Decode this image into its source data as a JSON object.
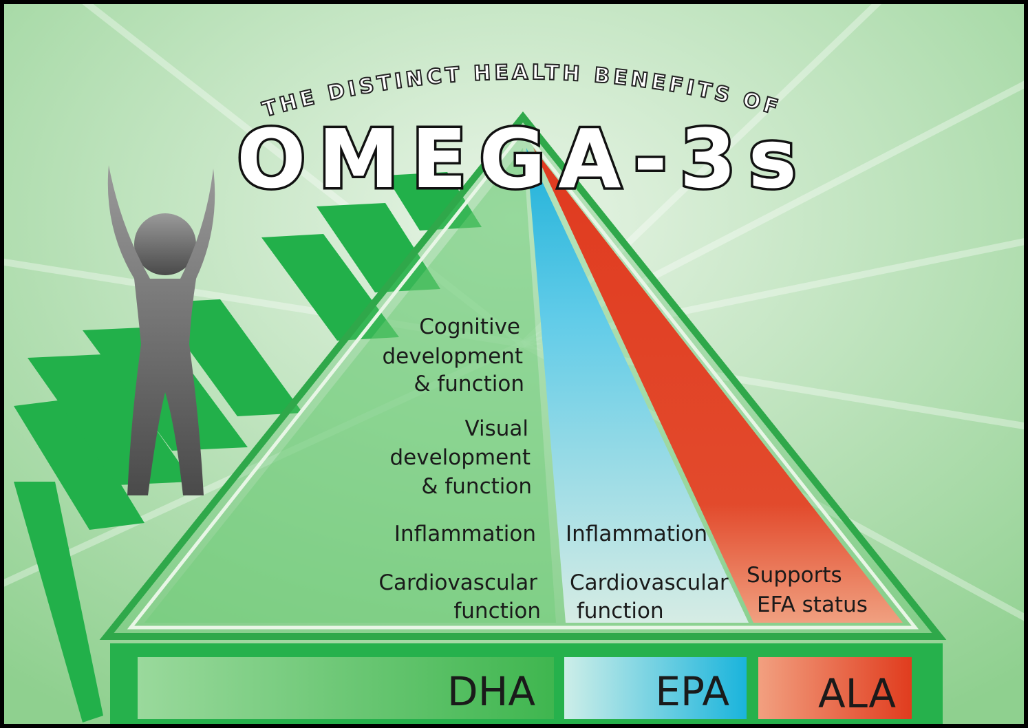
{
  "header": {
    "kicker": "THE DISTINCT HEALTH BENEFITS OF",
    "title": "OMEGA-3s"
  },
  "columns": [
    {
      "label": "DHA",
      "benefits": [
        [
          "Cognitive",
          "development",
          "& function"
        ],
        [
          "Visual",
          "development",
          "& function"
        ],
        [
          "Inflammation"
        ],
        [
          "Cardiovascular",
          "function"
        ]
      ]
    },
    {
      "label": "EPA",
      "benefits": [
        [
          "Inflammation"
        ],
        [
          "Cardiovascular",
          "function"
        ]
      ]
    },
    {
      "label": "ALA",
      "benefits": [
        [
          "Supports",
          "EFA status"
        ]
      ]
    }
  ]
}
